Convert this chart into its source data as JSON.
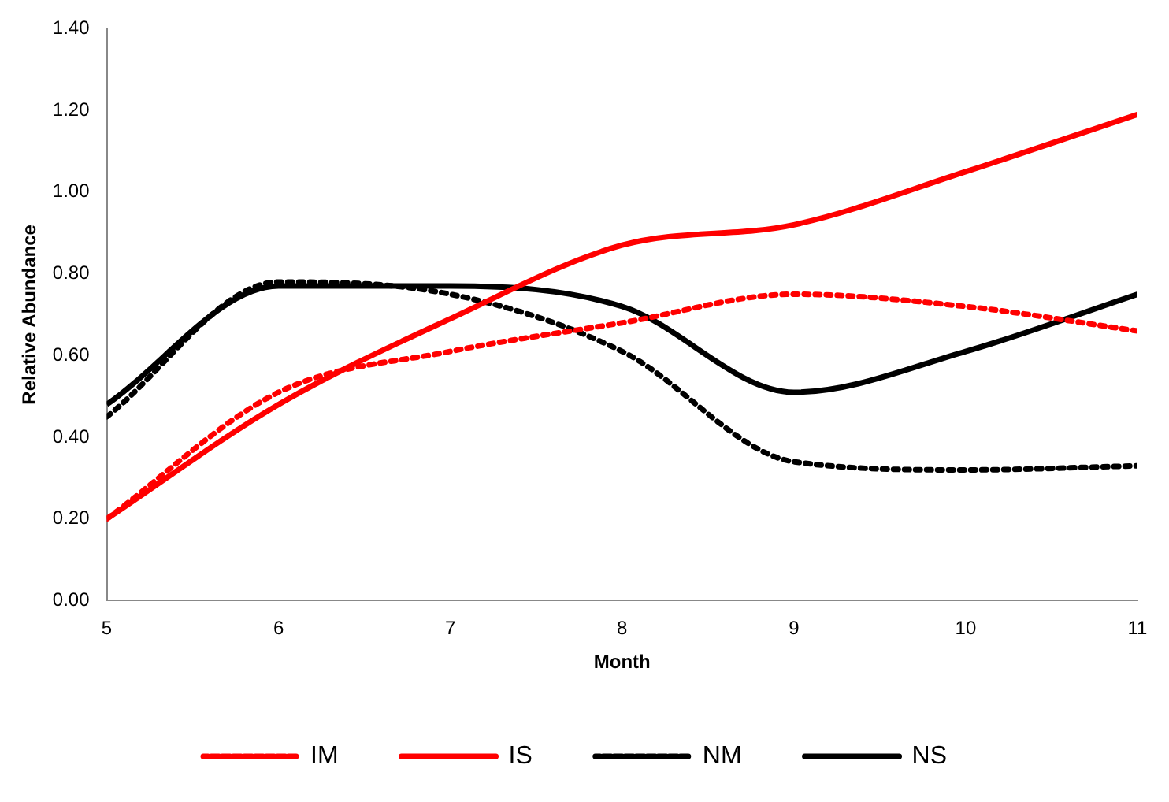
{
  "chart_data": {
    "type": "line",
    "xlabel": "Month",
    "ylabel": "Relative Abundance",
    "x": [
      5,
      6,
      7,
      8,
      9,
      10,
      11
    ],
    "xlim": [
      5,
      11
    ],
    "xticks": [
      5,
      6,
      7,
      8,
      9,
      10,
      11
    ],
    "ylim": [
      0,
      1.4
    ],
    "yticks": [
      {
        "value": 0,
        "label": "0.00"
      },
      {
        "value": 0.2,
        "label": "0.20"
      },
      {
        "value": 0.4,
        "label": "0.40"
      },
      {
        "value": 0.6,
        "label": "0.60"
      },
      {
        "value": 0.8,
        "label": "0.80"
      },
      {
        "value": 1,
        "label": "1.00"
      },
      {
        "value": 1.2,
        "label": "1.20"
      },
      {
        "value": 1.4,
        "label": "1.40"
      }
    ],
    "grid": false,
    "legend": "bottom",
    "marker": "none",
    "series": [
      {
        "name": "IM",
        "color": "#ff0000",
        "line_style": "dotted",
        "values": [
          0.2,
          0.51,
          0.61,
          0.68,
          0.75,
          0.72,
          0.66
        ]
      },
      {
        "name": "IS",
        "color": "#ff0000",
        "line_style": "solid",
        "values": [
          0.2,
          0.48,
          0.69,
          0.87,
          0.92,
          1.05,
          1.19
        ]
      },
      {
        "name": "NM",
        "color": "#000000",
        "line_style": "dotted",
        "values": [
          0.45,
          0.78,
          0.75,
          0.61,
          0.34,
          0.32,
          0.33
        ]
      },
      {
        "name": "NS",
        "color": "#000000",
        "line_style": "solid",
        "values": [
          0.48,
          0.77,
          0.77,
          0.72,
          0.51,
          0.61,
          0.75
        ]
      }
    ]
  }
}
